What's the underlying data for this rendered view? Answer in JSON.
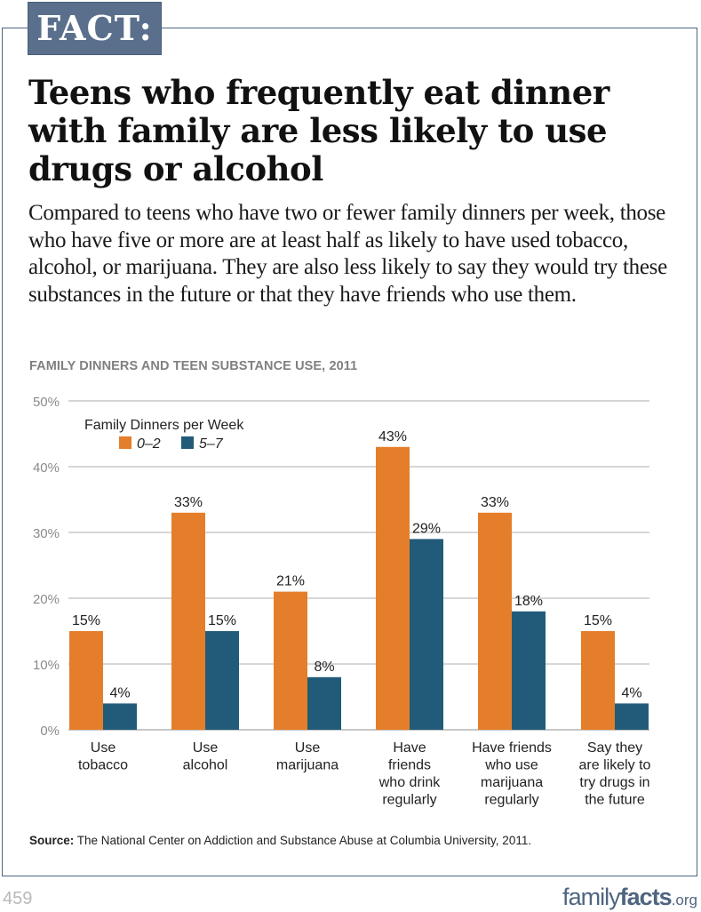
{
  "badge": "FACT:",
  "title": "Teens who frequently eat dinner with family are less likely to use drugs or alcohol",
  "subtitle": "Compared to teens who have two or fewer family dinners per week, those who have five or more are at least half as likely to have used tobacco, alcohol, or marijuana. They are also less likely to say they would try these substances in the future or that they have friends who use them.",
  "source": {
    "label": "Source:",
    "text": "The National Center on Addiction and Substance Abuse at Columbia University, 2011."
  },
  "page_number": "459",
  "logo": {
    "part1": "family",
    "part2": "facts",
    "part3": ".org"
  },
  "colors": {
    "series_0_2": "#e57e2a",
    "series_5_7": "#215b79",
    "frame": "#4f6580",
    "gridline": "#c8c8c8",
    "axis_label": "#8a8a8a"
  },
  "chart_data": {
    "type": "bar",
    "title": "FAMILY DINNERS AND TEEN SUBSTANCE USE, 2011",
    "xlabel": "",
    "ylabel": "",
    "ylim": [
      0,
      50
    ],
    "yticks": [
      0,
      10,
      20,
      30,
      40,
      50
    ],
    "ytick_labels": [
      "0%",
      "10%",
      "20%",
      "30%",
      "40%",
      "50%"
    ],
    "grid": true,
    "legend_title": "Family Dinners per Week",
    "legend_position": "top-left",
    "categories": [
      [
        "Use",
        "tobacco"
      ],
      [
        "Use",
        "alcohol"
      ],
      [
        "Use",
        "marijuana"
      ],
      [
        "Have",
        "friends",
        "who drink",
        "regularly"
      ],
      [
        "Have friends",
        "who use",
        "marijuana",
        "regularly"
      ],
      [
        "Say they",
        "are likely to",
        "try drugs in",
        "the future"
      ]
    ],
    "series": [
      {
        "name": "0–2",
        "values": [
          15,
          33,
          21,
          43,
          33,
          15
        ],
        "labels": [
          "15%",
          "33%",
          "21%",
          "43%",
          "33%",
          "15%"
        ]
      },
      {
        "name": "5–7",
        "values": [
          4,
          15,
          8,
          29,
          18,
          4
        ],
        "labels": [
          "4%",
          "15%",
          "8%",
          "29%",
          "18%",
          "4%"
        ]
      }
    ]
  }
}
